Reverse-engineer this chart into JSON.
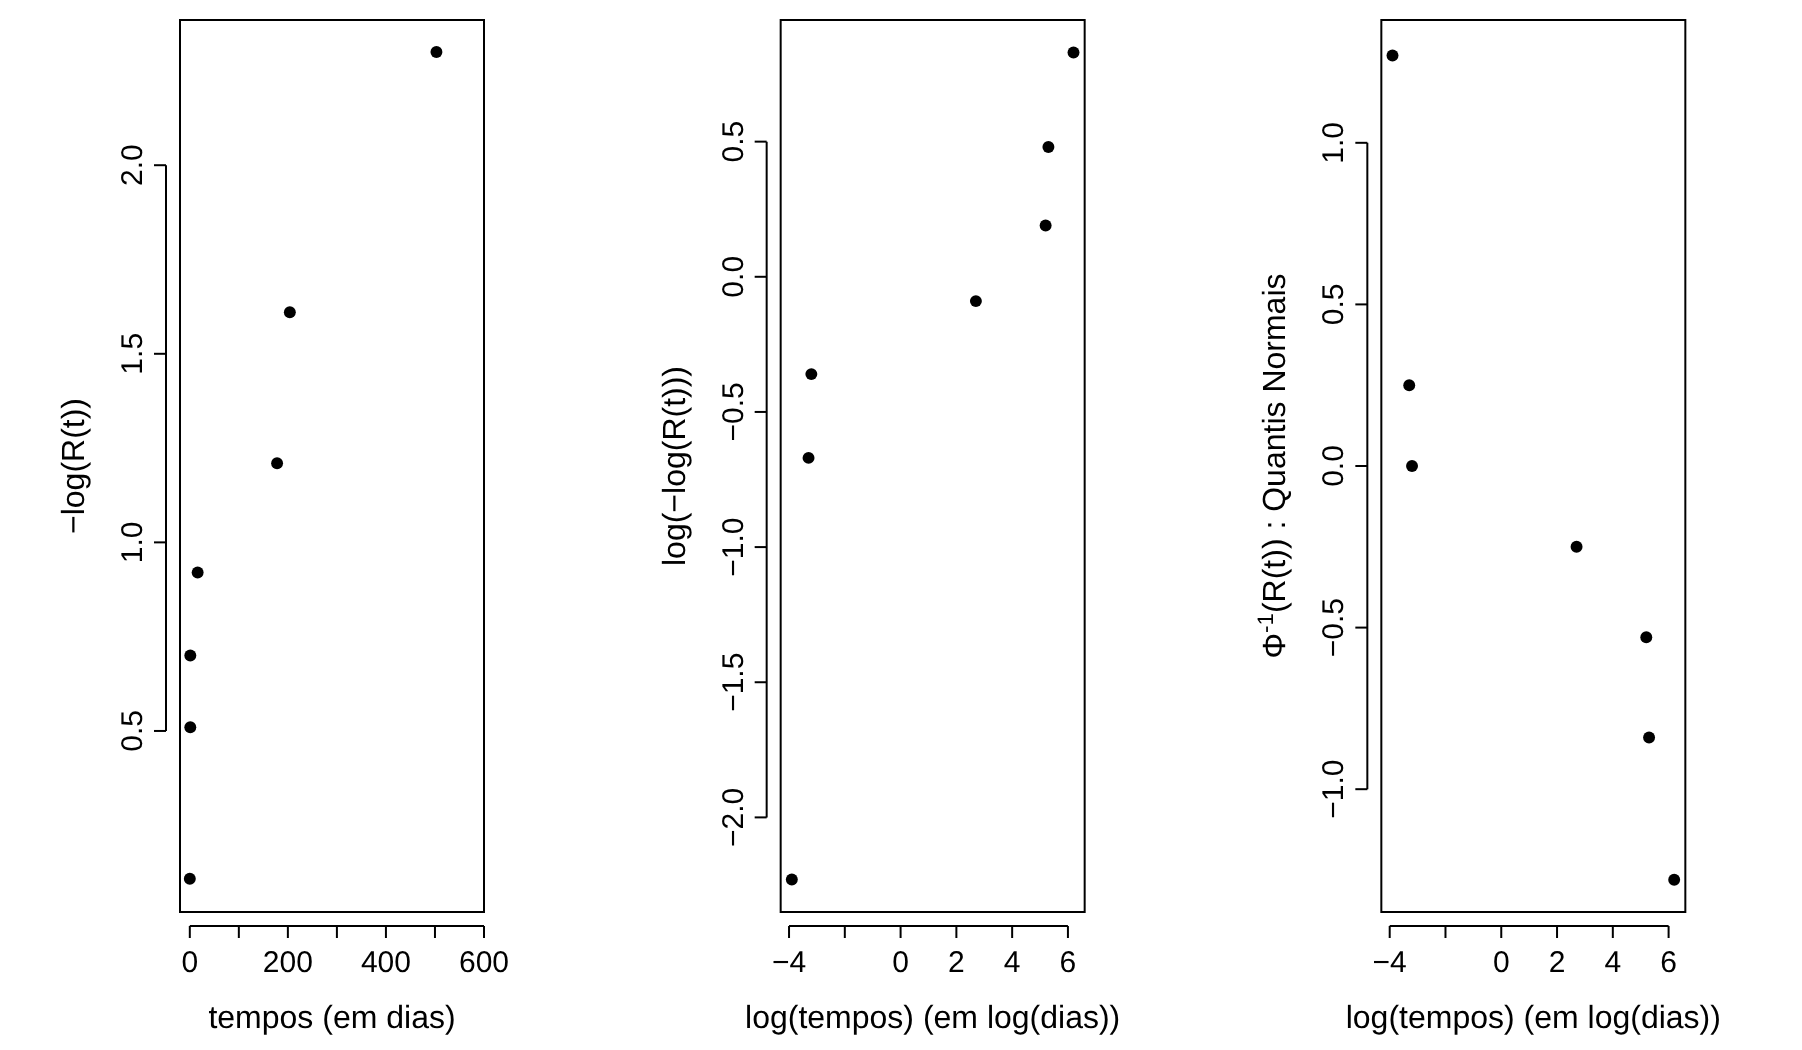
{
  "chart_data": [
    {
      "type": "scatter",
      "xlabel": "tempos (em dias)",
      "ylabel": "−log(R(t))",
      "marker": "circle",
      "grid": false,
      "xlim": [
        -20,
        600
      ],
      "ylim": [
        0.02,
        2.385
      ],
      "xticks": [
        0,
        {
          "value": 100,
          "label": null
        },
        200,
        {
          "value": 300,
          "label": null
        },
        400,
        {
          "value": 500,
          "label": null
        },
        600
      ],
      "yticks": [
        {
          "value": 0.5,
          "label": "0.5"
        },
        {
          "value": 1,
          "label": "1.0"
        },
        {
          "value": 1.5,
          "label": "1.5"
        },
        {
          "value": 2,
          "label": "2.0"
        }
      ],
      "series": [
        {
          "color": "#000000",
          "x": [
            0,
            1,
            1,
            16,
            178,
            204,
            503
          ],
          "values": [
            0.108,
            0.51,
            0.7,
            0.92,
            1.21,
            1.61,
            2.3
          ]
        }
      ]
    },
    {
      "type": "scatter",
      "xlabel": "log(tempos) (em log(dias))",
      "ylabel": "log(−log(R(t)))",
      "marker": "circle",
      "grid": false,
      "xlim": [
        -4.3,
        6.6
      ],
      "ylim": [
        -2.35,
        0.95
      ],
      "xticks": [
        {
          "value": -4,
          "label": "−4"
        },
        {
          "value": -2,
          "label": null
        },
        0,
        2,
        4,
        6
      ],
      "yticks": [
        {
          "value": -2,
          "label": "−2.0"
        },
        {
          "value": -1.5,
          "label": "−1.5"
        },
        {
          "value": -1,
          "label": "−1.0"
        },
        {
          "value": -0.5,
          "label": "−0.5"
        },
        {
          "value": 0,
          "label": "0.0"
        },
        {
          "value": 0.5,
          "label": "0.5"
        }
      ],
      "series": [
        {
          "color": "#000000",
          "x": [
            -3.9,
            -3.3,
            -3.2,
            2.7,
            5.2,
            5.3,
            6.2
          ],
          "values": [
            -2.23,
            -0.67,
            -0.36,
            -0.09,
            0.19,
            0.48,
            0.83
          ]
        }
      ]
    },
    {
      "type": "scatter",
      "xlabel": "log(tempos) (em log(dias))",
      "ylabel": "Φ$^{-1}$(R(t)) : Quantis Normais",
      "marker": "circle",
      "grid": false,
      "xlim": [
        -4.3,
        6.6
      ],
      "ylim": [
        -1.38,
        1.38
      ],
      "xticks": [
        {
          "value": -4,
          "label": "−4"
        },
        {
          "value": -2,
          "label": null
        },
        0,
        2,
        4,
        6
      ],
      "yticks": [
        {
          "value": -1,
          "label": "−1.0"
        },
        {
          "value": -0.5,
          "label": "−0.5"
        },
        {
          "value": 0,
          "label": "0.0"
        },
        {
          "value": 0.5,
          "label": "0.5"
        },
        {
          "value": 1,
          "label": "1.0"
        }
      ],
      "series": [
        {
          "color": "#000000",
          "x": [
            -3.9,
            -3.3,
            -3.2,
            2.7,
            5.2,
            5.3,
            6.2
          ],
          "values": [
            1.27,
            0.25,
            0,
            -0.25,
            -0.53,
            -0.84,
            -1.28
          ]
        }
      ]
    }
  ]
}
